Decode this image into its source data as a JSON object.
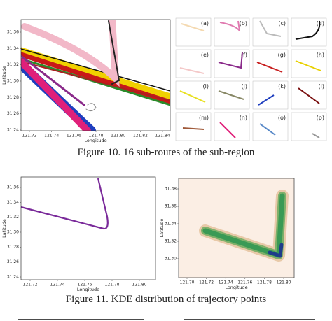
{
  "figure_10": {
    "main_plot": {
      "y_label": "Latitude",
      "x_label": "Longitude",
      "y_ticks": [
        "31.24",
        "31.26",
        "31.28",
        "31.30",
        "31.32",
        "31.34",
        "31.36"
      ],
      "x_ticks": [
        "121.72",
        "121.74",
        "121.76",
        "121.78",
        "121.80",
        "121.82",
        "121.84"
      ]
    },
    "panel_labels": [
      "(a)",
      "(b)",
      "(c)",
      "(d)",
      "(e)",
      "(f)",
      "(g)",
      "(h)",
      "(i)",
      "(j)",
      "(k)",
      "(l)",
      "(m)",
      "(n)",
      "(o)",
      "(p)"
    ],
    "caption": "Figure 10. 16 sub-routes of the sub-region"
  },
  "figure_11": {
    "plots": [
      {
        "y_label": "Latitude",
        "x_label": "Longitude",
        "y_ticks": [
          "31.24",
          "31.26",
          "31.28",
          "31.30",
          "31.32",
          "31.34",
          "31.36"
        ],
        "x_ticks": [
          "121.72",
          "121.74",
          "121.76",
          "121.78",
          "121.80"
        ]
      },
      {
        "y_label": "Latitude",
        "x_label": "Longitude",
        "y_ticks": [
          "31.30",
          "31.32",
          "31.34",
          "31.36",
          "31.38"
        ],
        "x_ticks": [
          "121.70",
          "121.72",
          "121.74",
          "121.76",
          "121.78",
          "121.80"
        ]
      }
    ],
    "caption": "Figure 11. KDE distribution of trajectory points"
  }
}
